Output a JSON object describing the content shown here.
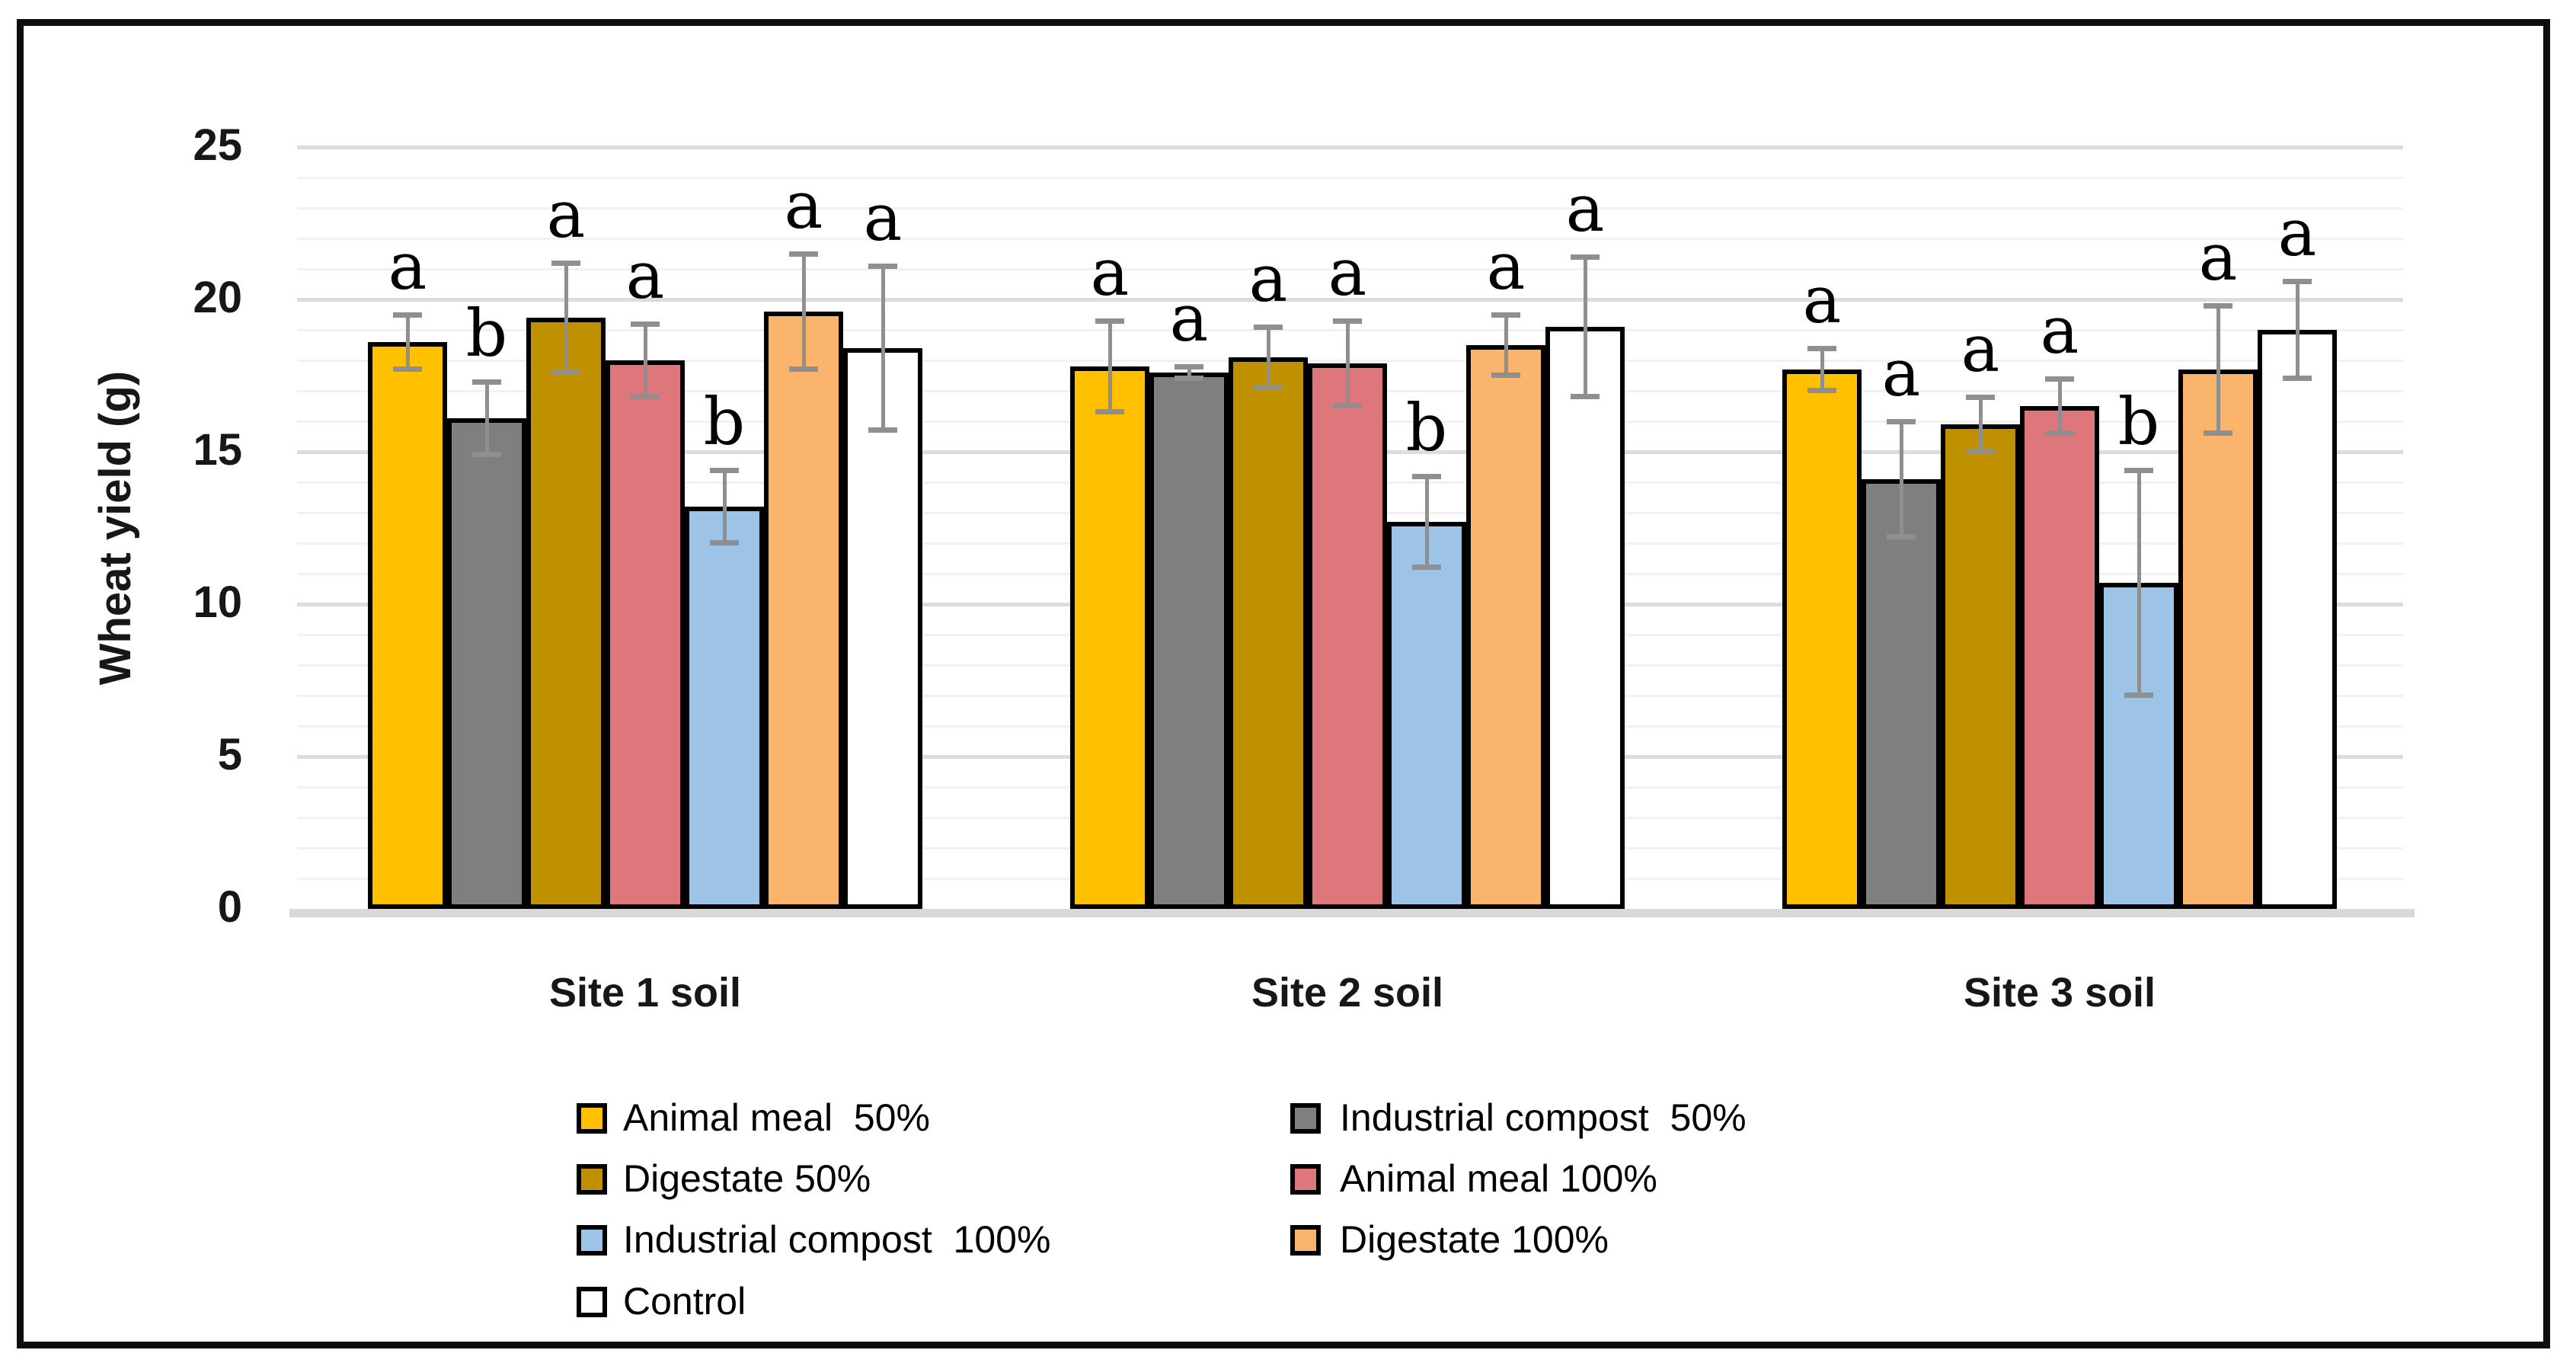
{
  "chart_data": {
    "type": "bar",
    "title": "",
    "ylabel": "Wheat yield (g)",
    "xlabel": "",
    "ylim": [
      0,
      25
    ],
    "y_major_ticks": [
      0,
      5,
      10,
      15,
      20,
      25
    ],
    "y_tick_labels": [
      "0",
      "5",
      "10",
      "15",
      "20",
      "25"
    ],
    "y_minor_step": 1,
    "grid": "horizontal, minor every 1 (light), major every 5 (darker)",
    "legend_position": "bottom, two columns",
    "error_bars": "symmetric, gray with caps",
    "categories": [
      "Site 1 soil",
      "Site 2 soil",
      "Site 3 soil"
    ],
    "series": [
      {
        "name": "Animal meal  50%",
        "color": "#FFC000",
        "values": [
          18.6,
          17.8,
          17.7
        ],
        "errors": [
          0.9,
          1.5,
          0.7
        ],
        "letters": [
          "a",
          "a",
          "a"
        ]
      },
      {
        "name": "Industrial compost  50%",
        "color": "#7F7F7F",
        "values": [
          16.1,
          17.6,
          14.1
        ],
        "errors": [
          1.2,
          0.2,
          1.9
        ],
        "letters": [
          "b",
          "a",
          "a"
        ]
      },
      {
        "name": "Digestate 50%",
        "color": "#BF9000",
        "values": [
          19.4,
          18.1,
          15.9
        ],
        "errors": [
          1.8,
          1.0,
          0.9
        ],
        "letters": [
          "a",
          "a",
          "a"
        ]
      },
      {
        "name": "Animal meal 100%",
        "color": "#DE777B",
        "values": [
          18.0,
          17.9,
          16.5
        ],
        "errors": [
          1.2,
          1.4,
          0.9
        ],
        "letters": [
          "a",
          "a",
          "a"
        ]
      },
      {
        "name": "Industrial compost  100%",
        "color": "#9DC3E6",
        "values": [
          13.2,
          12.7,
          10.7
        ],
        "errors": [
          1.2,
          1.5,
          3.7
        ],
        "letters": [
          "b",
          "b",
          "b"
        ]
      },
      {
        "name": "Digestate 100%",
        "color": "#FBB46C",
        "values": [
          19.6,
          18.5,
          17.7
        ],
        "errors": [
          1.9,
          1.0,
          2.1
        ],
        "letters": [
          "a",
          "a",
          "a"
        ]
      },
      {
        "name": "Control",
        "color": "#FFFFFF",
        "values": [
          18.4,
          19.1,
          19.0
        ],
        "errors": [
          2.7,
          2.3,
          1.6
        ],
        "letters": [
          "a",
          "a",
          "a"
        ]
      }
    ]
  },
  "colors": {
    "frame_border": "#0D0D0D",
    "gridline_major": "#DCDCDC",
    "gridline_minor": "#F1F1F1",
    "baseline": "#D9D9D9",
    "error_bar": "#8F8F8F",
    "text": "#171717"
  }
}
